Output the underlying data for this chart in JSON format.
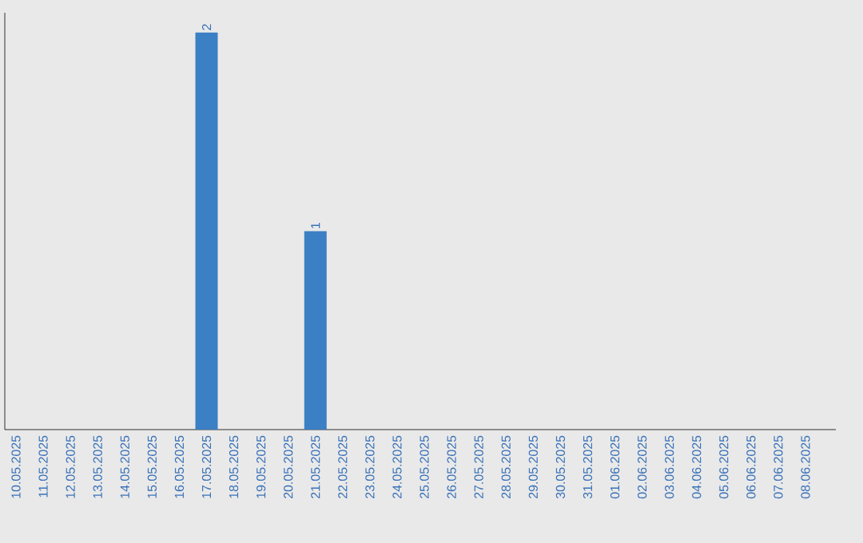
{
  "chart_data": {
    "type": "bar",
    "categories": [
      "10.05.2025",
      "11.05.2025",
      "12.05.2025",
      "13.05.2025",
      "14.05.2025",
      "15.05.2025",
      "16.05.2025",
      "17.05.2025",
      "18.05.2025",
      "19.05.2025",
      "20.05.2025",
      "21.05.2025",
      "22.05.2025",
      "23.05.2025",
      "24.05.2025",
      "25.05.2025",
      "26.05.2025",
      "27.05.2025",
      "28.05.2025",
      "29.05.2025",
      "30.05.2025",
      "31.05.2025",
      "01.06.2025",
      "02.06.2025",
      "03.06.2025",
      "04.06.2025",
      "05.06.2025",
      "06.06.2025",
      "07.06.2025",
      "08.06.2025"
    ],
    "values": [
      0,
      0,
      0,
      0,
      0,
      0,
      0,
      2,
      0,
      0,
      0,
      1,
      0,
      0,
      0,
      0,
      0,
      0,
      0,
      0,
      0,
      0,
      0,
      0,
      0,
      0,
      0,
      0,
      0,
      0
    ],
    "value_labels": [
      null,
      null,
      null,
      null,
      null,
      null,
      null,
      "2",
      null,
      null,
      null,
      "1",
      null,
      null,
      null,
      null,
      null,
      null,
      null,
      null,
      null,
      null,
      null,
      null,
      null,
      null,
      null,
      null,
      null,
      null
    ],
    "color": "#3b7fc4",
    "ylim": [
      0,
      2.1
    ],
    "tick_labels": "x"
  }
}
